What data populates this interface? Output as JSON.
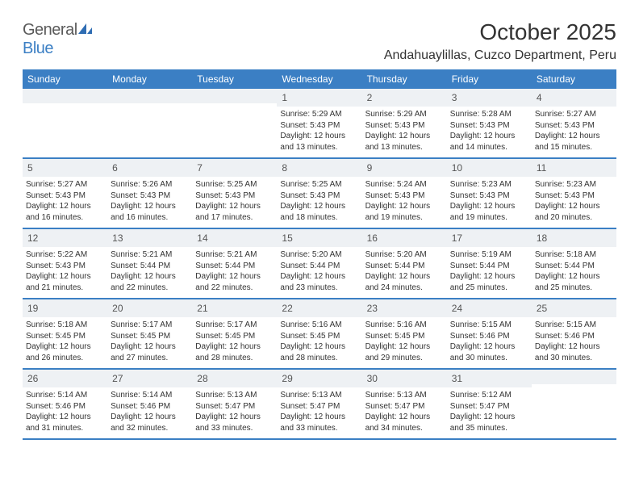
{
  "brand": {
    "part1": "General",
    "part2": "Blue"
  },
  "title": "October 2025",
  "location": "Andahuaylillas, Cuzco Department, Peru",
  "colors": {
    "header_bg": "#3b7fc4",
    "daynum_bg": "#eef1f4",
    "text": "#333333",
    "brand_gray": "#5a5a5a",
    "brand_blue": "#3b7fc4",
    "row_border": "#3b7fc4"
  },
  "calendar": {
    "day_names": [
      "Sunday",
      "Monday",
      "Tuesday",
      "Wednesday",
      "Thursday",
      "Friday",
      "Saturday"
    ],
    "weeks": [
      [
        null,
        null,
        null,
        {
          "n": "1",
          "sr": "Sunrise: 5:29 AM",
          "ss": "Sunset: 5:43 PM",
          "dl1": "Daylight: 12 hours",
          "dl2": "and 13 minutes."
        },
        {
          "n": "2",
          "sr": "Sunrise: 5:29 AM",
          "ss": "Sunset: 5:43 PM",
          "dl1": "Daylight: 12 hours",
          "dl2": "and 13 minutes."
        },
        {
          "n": "3",
          "sr": "Sunrise: 5:28 AM",
          "ss": "Sunset: 5:43 PM",
          "dl1": "Daylight: 12 hours",
          "dl2": "and 14 minutes."
        },
        {
          "n": "4",
          "sr": "Sunrise: 5:27 AM",
          "ss": "Sunset: 5:43 PM",
          "dl1": "Daylight: 12 hours",
          "dl2": "and 15 minutes."
        }
      ],
      [
        {
          "n": "5",
          "sr": "Sunrise: 5:27 AM",
          "ss": "Sunset: 5:43 PM",
          "dl1": "Daylight: 12 hours",
          "dl2": "and 16 minutes."
        },
        {
          "n": "6",
          "sr": "Sunrise: 5:26 AM",
          "ss": "Sunset: 5:43 PM",
          "dl1": "Daylight: 12 hours",
          "dl2": "and 16 minutes."
        },
        {
          "n": "7",
          "sr": "Sunrise: 5:25 AM",
          "ss": "Sunset: 5:43 PM",
          "dl1": "Daylight: 12 hours",
          "dl2": "and 17 minutes."
        },
        {
          "n": "8",
          "sr": "Sunrise: 5:25 AM",
          "ss": "Sunset: 5:43 PM",
          "dl1": "Daylight: 12 hours",
          "dl2": "and 18 minutes."
        },
        {
          "n": "9",
          "sr": "Sunrise: 5:24 AM",
          "ss": "Sunset: 5:43 PM",
          "dl1": "Daylight: 12 hours",
          "dl2": "and 19 minutes."
        },
        {
          "n": "10",
          "sr": "Sunrise: 5:23 AM",
          "ss": "Sunset: 5:43 PM",
          "dl1": "Daylight: 12 hours",
          "dl2": "and 19 minutes."
        },
        {
          "n": "11",
          "sr": "Sunrise: 5:23 AM",
          "ss": "Sunset: 5:43 PM",
          "dl1": "Daylight: 12 hours",
          "dl2": "and 20 minutes."
        }
      ],
      [
        {
          "n": "12",
          "sr": "Sunrise: 5:22 AM",
          "ss": "Sunset: 5:43 PM",
          "dl1": "Daylight: 12 hours",
          "dl2": "and 21 minutes."
        },
        {
          "n": "13",
          "sr": "Sunrise: 5:21 AM",
          "ss": "Sunset: 5:44 PM",
          "dl1": "Daylight: 12 hours",
          "dl2": "and 22 minutes."
        },
        {
          "n": "14",
          "sr": "Sunrise: 5:21 AM",
          "ss": "Sunset: 5:44 PM",
          "dl1": "Daylight: 12 hours",
          "dl2": "and 22 minutes."
        },
        {
          "n": "15",
          "sr": "Sunrise: 5:20 AM",
          "ss": "Sunset: 5:44 PM",
          "dl1": "Daylight: 12 hours",
          "dl2": "and 23 minutes."
        },
        {
          "n": "16",
          "sr": "Sunrise: 5:20 AM",
          "ss": "Sunset: 5:44 PM",
          "dl1": "Daylight: 12 hours",
          "dl2": "and 24 minutes."
        },
        {
          "n": "17",
          "sr": "Sunrise: 5:19 AM",
          "ss": "Sunset: 5:44 PM",
          "dl1": "Daylight: 12 hours",
          "dl2": "and 25 minutes."
        },
        {
          "n": "18",
          "sr": "Sunrise: 5:18 AM",
          "ss": "Sunset: 5:44 PM",
          "dl1": "Daylight: 12 hours",
          "dl2": "and 25 minutes."
        }
      ],
      [
        {
          "n": "19",
          "sr": "Sunrise: 5:18 AM",
          "ss": "Sunset: 5:45 PM",
          "dl1": "Daylight: 12 hours",
          "dl2": "and 26 minutes."
        },
        {
          "n": "20",
          "sr": "Sunrise: 5:17 AM",
          "ss": "Sunset: 5:45 PM",
          "dl1": "Daylight: 12 hours",
          "dl2": "and 27 minutes."
        },
        {
          "n": "21",
          "sr": "Sunrise: 5:17 AM",
          "ss": "Sunset: 5:45 PM",
          "dl1": "Daylight: 12 hours",
          "dl2": "and 28 minutes."
        },
        {
          "n": "22",
          "sr": "Sunrise: 5:16 AM",
          "ss": "Sunset: 5:45 PM",
          "dl1": "Daylight: 12 hours",
          "dl2": "and 28 minutes."
        },
        {
          "n": "23",
          "sr": "Sunrise: 5:16 AM",
          "ss": "Sunset: 5:45 PM",
          "dl1": "Daylight: 12 hours",
          "dl2": "and 29 minutes."
        },
        {
          "n": "24",
          "sr": "Sunrise: 5:15 AM",
          "ss": "Sunset: 5:46 PM",
          "dl1": "Daylight: 12 hours",
          "dl2": "and 30 minutes."
        },
        {
          "n": "25",
          "sr": "Sunrise: 5:15 AM",
          "ss": "Sunset: 5:46 PM",
          "dl1": "Daylight: 12 hours",
          "dl2": "and 30 minutes."
        }
      ],
      [
        {
          "n": "26",
          "sr": "Sunrise: 5:14 AM",
          "ss": "Sunset: 5:46 PM",
          "dl1": "Daylight: 12 hours",
          "dl2": "and 31 minutes."
        },
        {
          "n": "27",
          "sr": "Sunrise: 5:14 AM",
          "ss": "Sunset: 5:46 PM",
          "dl1": "Daylight: 12 hours",
          "dl2": "and 32 minutes."
        },
        {
          "n": "28",
          "sr": "Sunrise: 5:13 AM",
          "ss": "Sunset: 5:47 PM",
          "dl1": "Daylight: 12 hours",
          "dl2": "and 33 minutes."
        },
        {
          "n": "29",
          "sr": "Sunrise: 5:13 AM",
          "ss": "Sunset: 5:47 PM",
          "dl1": "Daylight: 12 hours",
          "dl2": "and 33 minutes."
        },
        {
          "n": "30",
          "sr": "Sunrise: 5:13 AM",
          "ss": "Sunset: 5:47 PM",
          "dl1": "Daylight: 12 hours",
          "dl2": "and 34 minutes."
        },
        {
          "n": "31",
          "sr": "Sunrise: 5:12 AM",
          "ss": "Sunset: 5:47 PM",
          "dl1": "Daylight: 12 hours",
          "dl2": "and 35 minutes."
        },
        null
      ]
    ]
  }
}
